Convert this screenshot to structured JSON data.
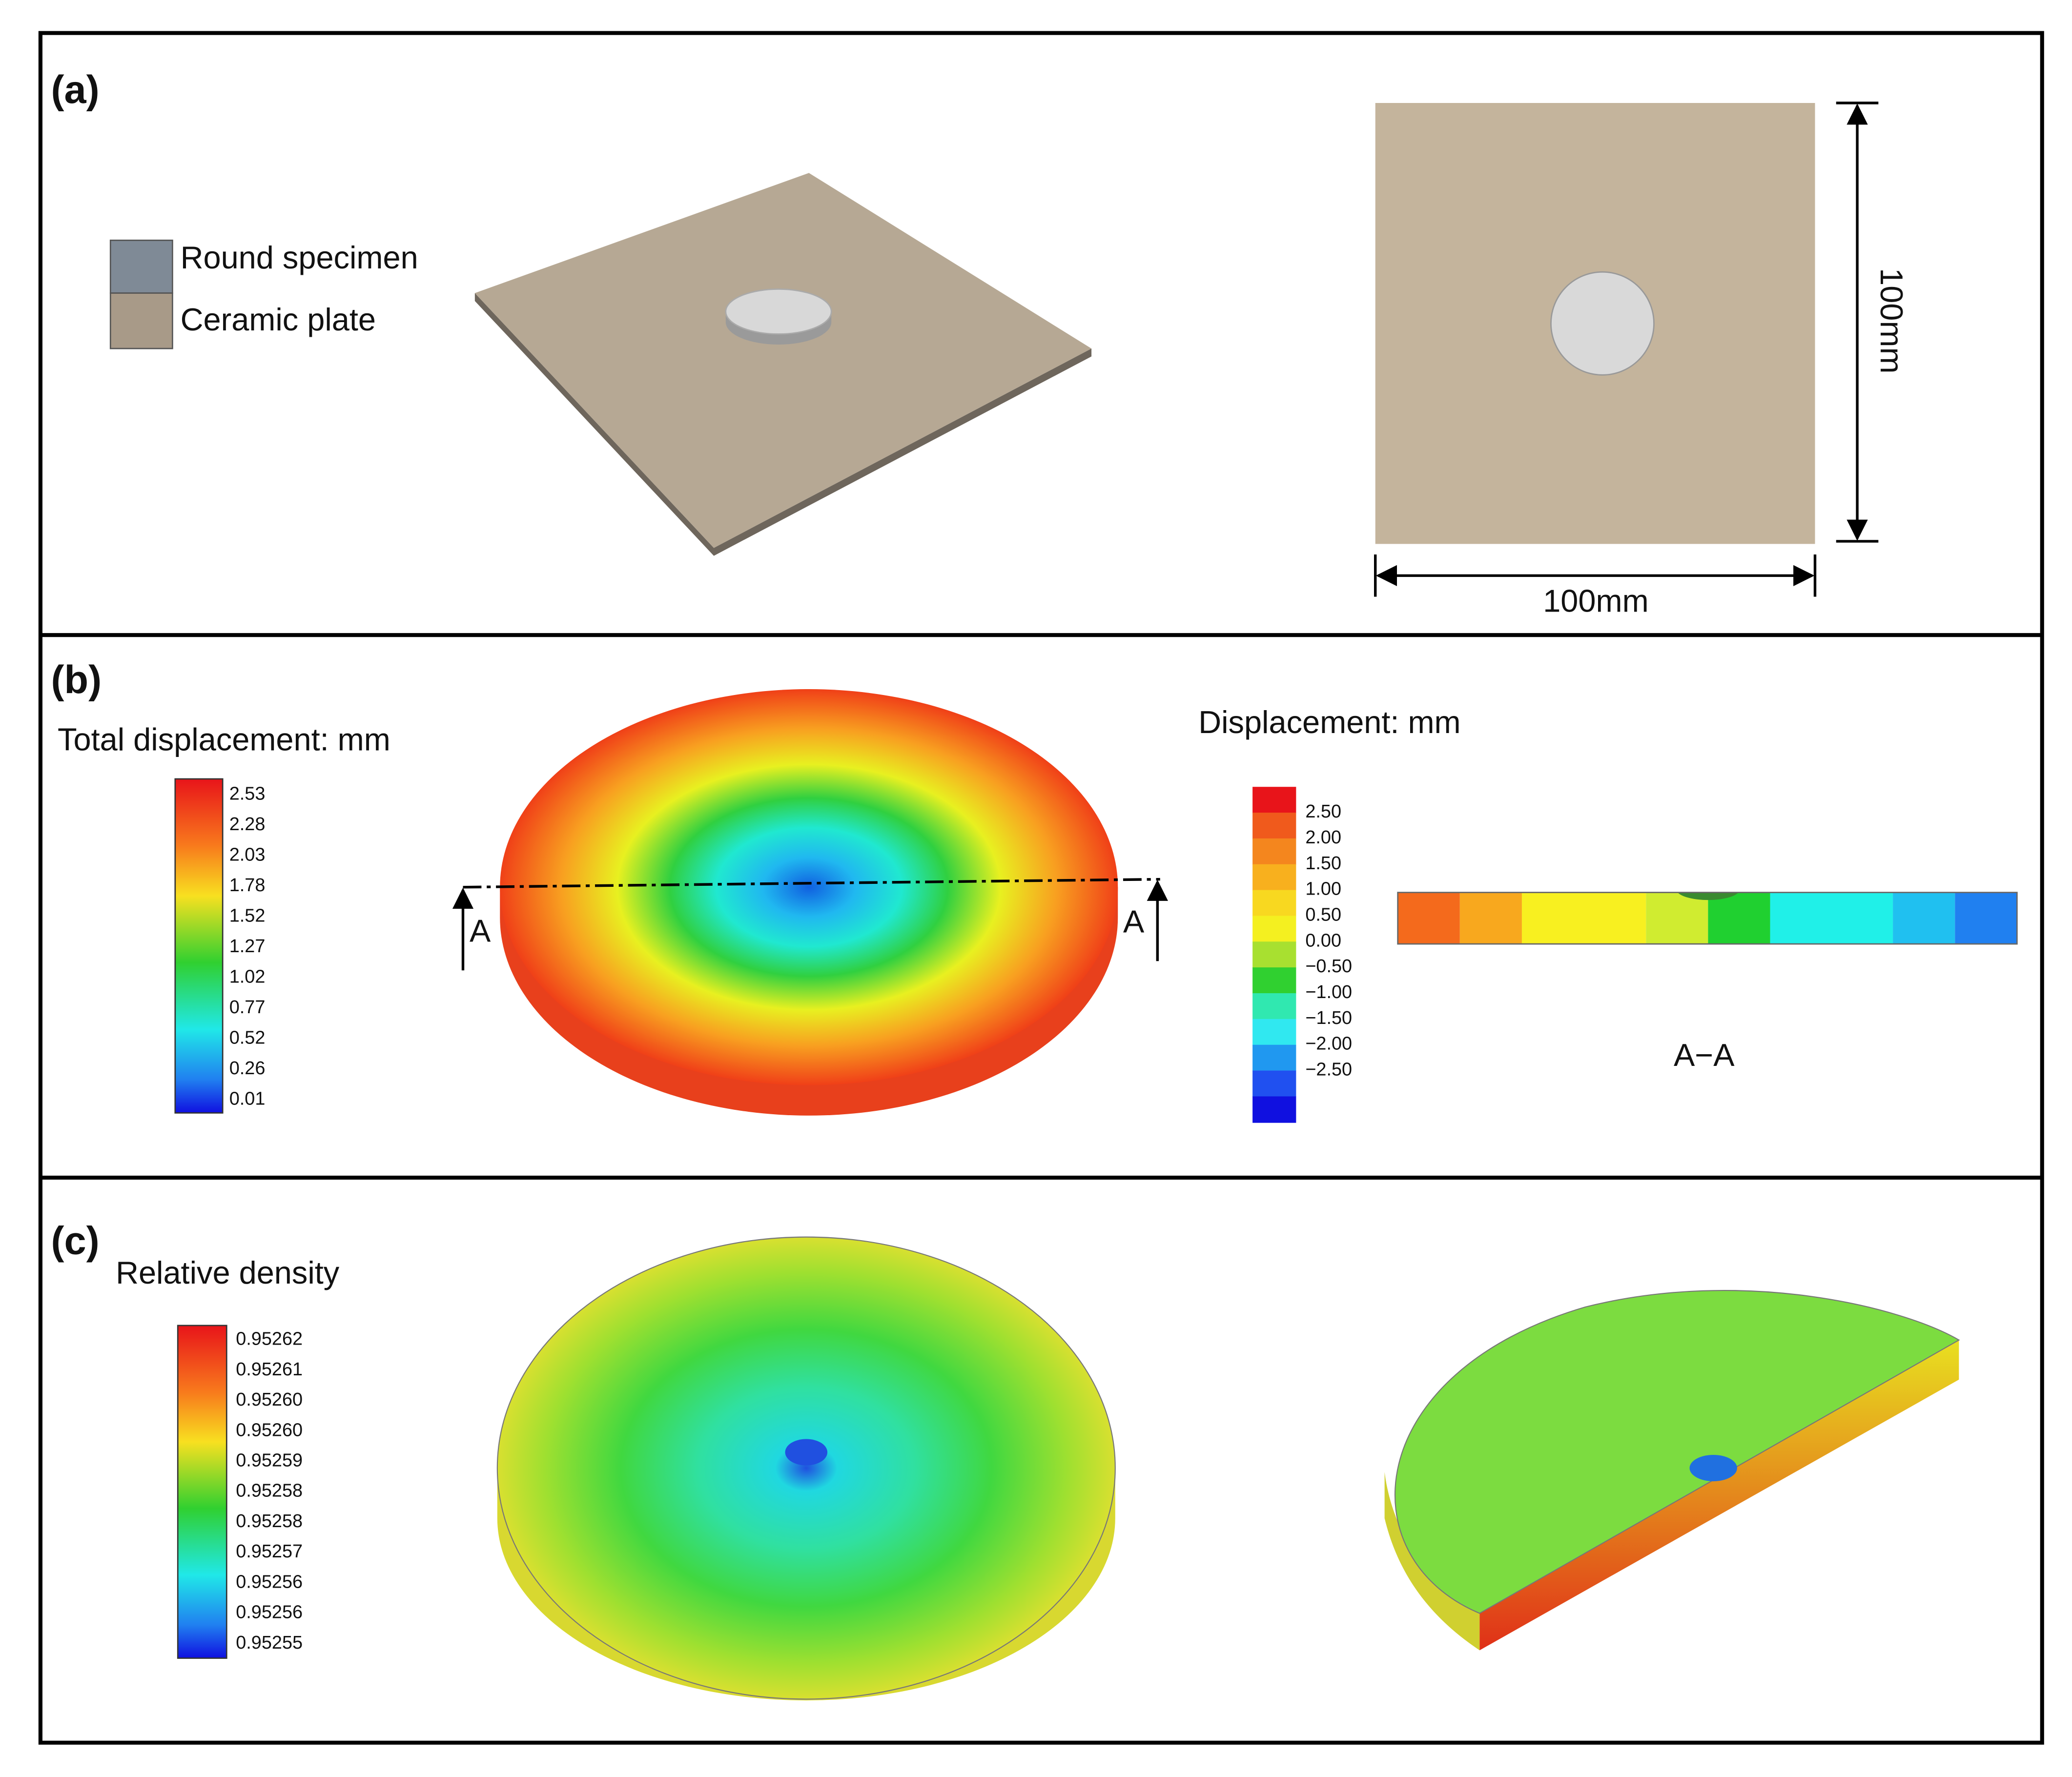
{
  "panel_a": {
    "label": "(a)",
    "legend": [
      "Round specimen",
      "Ceramic plate"
    ],
    "width_label": "100mm",
    "height_label": "100mm"
  },
  "panel_b": {
    "label": "(b)",
    "total_title": "Total displacement: mm",
    "total_ticks": [
      "2.53",
      "2.28",
      "2.03",
      "1.78",
      "1.52",
      "1.27",
      "1.02",
      "0.77",
      "0.52",
      "0.26",
      "0.01"
    ],
    "section_marker": "A",
    "disp_title": "Displacement: mm",
    "disp_ticks": [
      "2.50",
      "2.00",
      "1.50",
      "1.00",
      "0.50",
      "0.00",
      "−0.50",
      "−1.00",
      "−1.50",
      "−2.00",
      "−2.50"
    ],
    "section_label": "A−A"
  },
  "panel_c": {
    "label": "(c)",
    "title": "Relative density",
    "ticks": [
      "0.95262",
      "0.95261",
      "0.95260",
      "0.95260",
      "0.95259",
      "0.95258",
      "0.95258",
      "0.95257",
      "0.95256",
      "0.95256",
      "0.95255"
    ]
  }
}
